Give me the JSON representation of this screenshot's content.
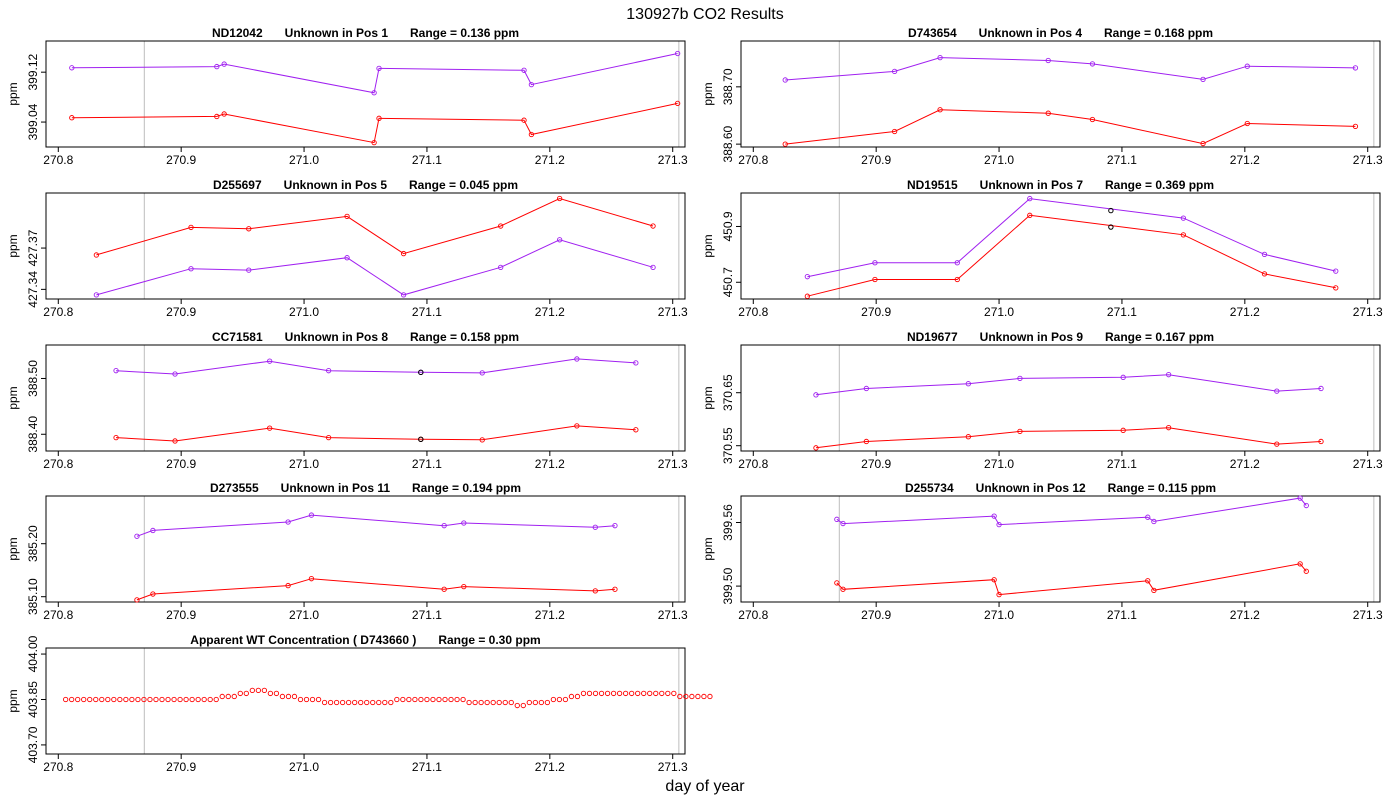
{
  "page": {
    "title": "130927b  CO2 Results",
    "xlabel": "day of year"
  },
  "colors": {
    "upper": "#a020f0",
    "lower": "#ff0000",
    "flag": "#000000",
    "marker": "#bebebe",
    "frame": "#000000"
  },
  "chart_data": [
    {
      "type": "line",
      "title_parts": [
        "ND12042",
        "Unknown in Pos 1",
        "Range =  0.136 ppm"
      ],
      "ylabel": "ppm",
      "xlim": [
        270.79,
        271.31
      ],
      "xticks": [
        "270.8",
        "270.9",
        "271.0",
        "271.1",
        "271.2",
        "271.3"
      ],
      "ylim": [
        399.0,
        399.17
      ],
      "yticks": [
        "399.04",
        "399.12"
      ],
      "series": [
        {
          "name": "upper",
          "x": [
            270.811,
            270.929,
            270.935,
            271.057,
            271.061,
            271.179,
            271.185,
            271.304
          ],
          "y": [
            399.127,
            399.129,
            399.133,
            399.087,
            399.126,
            399.123,
            399.1,
            399.15
          ]
        },
        {
          "name": "lower",
          "x": [
            270.811,
            270.929,
            270.935,
            271.057,
            271.061,
            271.179,
            271.185,
            271.304
          ],
          "y": [
            399.047,
            399.049,
            399.053,
            399.007,
            399.046,
            399.043,
            399.02,
            399.07
          ]
        }
      ]
    },
    {
      "type": "line",
      "title_parts": [
        "D743654",
        "Unknown in Pos 4",
        "Range =  0.168 ppm"
      ],
      "ylabel": "ppm",
      "xlim": [
        270.79,
        271.31
      ],
      "xticks": [
        "270.8",
        "270.9",
        "271.0",
        "271.1",
        "271.2",
        "271.3"
      ],
      "ylim": [
        388.595,
        388.78
      ],
      "yticks": [
        "388.60",
        "388.70"
      ],
      "series": [
        {
          "name": "upper",
          "x": [
            270.826,
            270.915,
            270.952,
            271.04,
            271.076,
            271.166,
            271.202,
            271.29
          ],
          "y": [
            388.712,
            388.727,
            388.751,
            388.746,
            388.74,
            388.713,
            388.736,
            388.733
          ]
        },
        {
          "name": "lower",
          "x": [
            270.826,
            270.915,
            270.952,
            271.04,
            271.076,
            271.166,
            271.202,
            271.29
          ],
          "y": [
            388.6,
            388.622,
            388.66,
            388.654,
            388.643,
            388.601,
            388.636,
            388.631
          ]
        }
      ]
    },
    {
      "type": "line",
      "title_parts": [
        "D255697",
        "Unknown in Pos 5",
        "Range =  0.045 ppm"
      ],
      "ylabel": "ppm",
      "xlim": [
        270.79,
        271.31
      ],
      "xticks": [
        "270.8",
        "270.9",
        "271.0",
        "271.1",
        "271.2",
        "271.3"
      ],
      "ylim": [
        427.333,
        427.41
      ],
      "yticks": [
        "427.34",
        "427.37"
      ],
      "series": [
        {
          "name": "upper",
          "x": [
            270.831,
            270.908,
            270.955,
            271.035,
            271.081,
            271.16,
            271.208,
            271.284
          ],
          "y": [
            427.336,
            427.355,
            427.354,
            427.363,
            427.336,
            427.356,
            427.376,
            427.356
          ]
        },
        {
          "name": "lower",
          "x": [
            270.831,
            270.908,
            270.955,
            271.035,
            271.081,
            271.16,
            271.208,
            271.284
          ],
          "y": [
            427.365,
            427.385,
            427.384,
            427.393,
            427.366,
            427.386,
            427.406,
            427.386
          ]
        }
      ]
    },
    {
      "type": "line",
      "title_parts": [
        "ND19515",
        "Unknown in Pos 7",
        "Range =  0.369 ppm"
      ],
      "ylabel": "ppm",
      "xlim": [
        270.79,
        271.31
      ],
      "xticks": [
        "270.8",
        "270.9",
        "271.0",
        "271.1",
        "271.2",
        "271.3"
      ],
      "ylim": [
        450.64,
        451.02
      ],
      "yticks": [
        "450.7",
        "450.9"
      ],
      "series": [
        {
          "name": "upper",
          "x": [
            270.844,
            270.899,
            270.966,
            271.025,
            271.15,
            271.216,
            271.274
          ],
          "y": [
            450.72,
            450.77,
            450.77,
            451.0,
            450.93,
            450.8,
            450.74
          ]
        },
        {
          "name": "lower",
          "x": [
            270.844,
            270.899,
            270.966,
            271.025,
            271.15,
            271.216,
            271.274
          ],
          "y": [
            450.65,
            450.71,
            450.71,
            450.94,
            450.87,
            450.73,
            450.68
          ]
        }
      ],
      "flagged": [
        {
          "x": 271.091,
          "y": 450.957
        },
        {
          "x": 271.091,
          "y": 450.898
        }
      ]
    },
    {
      "type": "line",
      "title_parts": [
        "CC71581",
        "Unknown in Pos 8",
        "Range =  0.158 ppm"
      ],
      "ylabel": "ppm",
      "xlim": [
        270.79,
        271.31
      ],
      "xticks": [
        "270.8",
        "270.9",
        "271.0",
        "271.1",
        "271.2",
        "271.3"
      ],
      "ylim": [
        388.37,
        388.56
      ],
      "yticks": [
        "388.40",
        "388.50"
      ],
      "series": [
        {
          "name": "upper",
          "x": [
            270.847,
            270.895,
            270.972,
            271.02,
            271.095,
            271.145,
            271.222,
            271.27
          ],
          "y": [
            388.514,
            388.508,
            388.531,
            388.514,
            388.511,
            388.51,
            388.535,
            388.528
          ]
        },
        {
          "name": "lower",
          "x": [
            270.847,
            270.895,
            270.972,
            271.02,
            271.095,
            271.145,
            271.222,
            271.27
          ],
          "y": [
            388.394,
            388.388,
            388.411,
            388.394,
            388.391,
            388.39,
            388.415,
            388.408
          ]
        }
      ],
      "flagged": [
        {
          "x": 271.095,
          "y": 388.511
        },
        {
          "x": 271.095,
          "y": 388.391
        }
      ]
    },
    {
      "type": "line",
      "title_parts": [
        "ND19677",
        "Unknown in Pos 9",
        "Range =  0.167 ppm"
      ],
      "ylabel": "ppm",
      "xlim": [
        270.79,
        271.31
      ],
      "xticks": [
        "270.8",
        "270.9",
        "271.0",
        "271.1",
        "271.2",
        "271.3"
      ],
      "ylim": [
        370.54,
        370.74
      ],
      "yticks": [
        "370.55",
        "370.65"
      ],
      "series": [
        {
          "name": "upper",
          "x": [
            270.851,
            270.892,
            270.975,
            271.017,
            271.101,
            271.138,
            271.226,
            271.262
          ],
          "y": [
            370.646,
            370.658,
            370.667,
            370.677,
            370.679,
            370.684,
            370.653,
            370.658
          ]
        },
        {
          "name": "lower",
          "x": [
            270.851,
            270.892,
            270.975,
            271.017,
            271.101,
            271.138,
            271.226,
            271.262
          ],
          "y": [
            370.546,
            370.558,
            370.567,
            370.577,
            370.579,
            370.584,
            370.553,
            370.558
          ]
        }
      ]
    },
    {
      "type": "line",
      "title_parts": [
        "D273555",
        "Unknown in Pos 11",
        "Range =  0.194 ppm"
      ],
      "ylabel": "ppm",
      "xlim": [
        270.79,
        271.31
      ],
      "xticks": [
        "270.8",
        "270.9",
        "271.0",
        "271.1",
        "271.2",
        "271.3"
      ],
      "ylim": [
        385.09,
        385.29
      ],
      "yticks": [
        "385.10",
        "385.20"
      ],
      "series": [
        {
          "name": "upper",
          "x": [
            270.864,
            270.877,
            270.987,
            271.006,
            271.114,
            271.13,
            271.237,
            271.253
          ],
          "y": [
            385.214,
            385.225,
            385.241,
            385.254,
            385.234,
            385.239,
            385.231,
            385.234
          ]
        },
        {
          "name": "lower",
          "x": [
            270.864,
            270.877,
            270.987,
            271.006,
            271.114,
            271.13,
            271.237,
            271.253
          ],
          "y": [
            385.094,
            385.105,
            385.121,
            385.134,
            385.114,
            385.119,
            385.111,
            385.114
          ]
        }
      ]
    },
    {
      "type": "line",
      "title_parts": [
        "D255734",
        "Unknown in Pos 12",
        "Range =  0.115 ppm"
      ],
      "ylabel": "ppm",
      "xlim": [
        270.79,
        271.31
      ],
      "xticks": [
        "270.8",
        "270.9",
        "271.0",
        "271.1",
        "271.2",
        "271.3"
      ],
      "ylim": [
        399.485,
        399.585
      ],
      "yticks": [
        "399.50",
        "399.56"
      ],
      "series": [
        {
          "name": "upper",
          "x": [
            270.868,
            270.873,
            270.996,
            271.0,
            271.121,
            271.126,
            271.245,
            271.25
          ],
          "y": [
            399.563,
            399.559,
            399.566,
            399.558,
            399.565,
            399.561,
            399.583,
            399.576
          ]
        },
        {
          "name": "lower",
          "x": [
            270.868,
            270.873,
            270.996,
            271.0,
            271.121,
            271.126,
            271.245,
            271.25
          ],
          "y": [
            399.503,
            399.497,
            399.506,
            399.492,
            399.505,
            399.496,
            399.521,
            399.514
          ]
        }
      ]
    },
    {
      "type": "scatter",
      "title_parts": [
        "Apparent WT Concentration ( D743660 )",
        "Range = 0.30 ppm"
      ],
      "ylabel": "ppm",
      "xlim": [
        270.79,
        271.31
      ],
      "xticks": [
        "270.8",
        "270.9",
        "271.0",
        "271.1",
        "271.2",
        "271.3"
      ],
      "ylim": [
        403.67,
        404.02
      ],
      "yticks": [
        "403.70",
        "403.85",
        "404.00"
      ],
      "series": [
        {
          "name": "WT",
          "x_start": 270.806,
          "x_step": 0.0049,
          "y": [
            403.85,
            403.85,
            403.85,
            403.85,
            403.85,
            403.85,
            403.85,
            403.85,
            403.85,
            403.85,
            403.85,
            403.85,
            403.85,
            403.85,
            403.85,
            403.85,
            403.85,
            403.85,
            403.85,
            403.85,
            403.85,
            403.85,
            403.85,
            403.85,
            403.85,
            403.85,
            403.86,
            403.86,
            403.86,
            403.87,
            403.87,
            403.88,
            403.88,
            403.88,
            403.87,
            403.87,
            403.86,
            403.86,
            403.86,
            403.85,
            403.85,
            403.85,
            403.85,
            403.84,
            403.84,
            403.84,
            403.84,
            403.84,
            403.84,
            403.84,
            403.84,
            403.84,
            403.84,
            403.84,
            403.84,
            403.85,
            403.85,
            403.85,
            403.85,
            403.85,
            403.85,
            403.85,
            403.85,
            403.85,
            403.85,
            403.85,
            403.85,
            403.84,
            403.84,
            403.84,
            403.84,
            403.84,
            403.84,
            403.84,
            403.84,
            403.83,
            403.83,
            403.84,
            403.84,
            403.84,
            403.84,
            403.85,
            403.85,
            403.85,
            403.86,
            403.86,
            403.87,
            403.87,
            403.87,
            403.87,
            403.87,
            403.87,
            403.87,
            403.87,
            403.87,
            403.87,
            403.87,
            403.87,
            403.87,
            403.87,
            403.87,
            403.87,
            403.86,
            403.86,
            403.86,
            403.86,
            403.86,
            403.86
          ]
        }
      ]
    }
  ]
}
